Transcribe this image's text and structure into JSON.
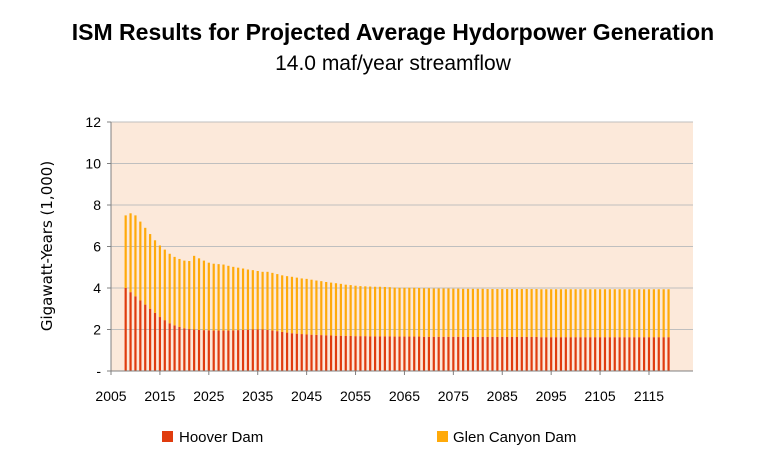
{
  "chart_data": {
    "type": "bar",
    "stacked": true,
    "title": "ISM Results for Projected Average Hydorpower Generation",
    "subtitle": "14.0 maf/year streamflow",
    "xlabel": "",
    "ylabel": "Gigawatt-Years (1,000)",
    "ylim": [
      0,
      12
    ],
    "y_ticks": [
      "-",
      "2",
      "4",
      "6",
      "8",
      "10",
      "12"
    ],
    "x_ticks": [
      "2005",
      "2015",
      "2025",
      "2035",
      "2045",
      "2055",
      "2065",
      "2075",
      "2085",
      "2095",
      "2105",
      "2115"
    ],
    "grid": true,
    "legend_position": "bottom",
    "colors": {
      "plot_background": "#FCE9DA",
      "grid": "#BFBFBF",
      "axis": "#808080"
    },
    "x": [
      2008,
      2009,
      2010,
      2011,
      2012,
      2013,
      2014,
      2015,
      2016,
      2017,
      2018,
      2019,
      2020,
      2021,
      2022,
      2023,
      2024,
      2025,
      2026,
      2027,
      2028,
      2029,
      2030,
      2031,
      2032,
      2033,
      2034,
      2035,
      2036,
      2037,
      2038,
      2039,
      2040,
      2041,
      2042,
      2043,
      2044,
      2045,
      2046,
      2047,
      2048,
      2049,
      2050,
      2051,
      2052,
      2053,
      2054,
      2055,
      2056,
      2057,
      2058,
      2059,
      2060,
      2061,
      2062,
      2063,
      2064,
      2065,
      2066,
      2067,
      2068,
      2069,
      2070,
      2071,
      2072,
      2073,
      2074,
      2075,
      2076,
      2077,
      2078,
      2079,
      2080,
      2081,
      2082,
      2083,
      2084,
      2085,
      2086,
      2087,
      2088,
      2089,
      2090,
      2091,
      2092,
      2093,
      2094,
      2095,
      2096,
      2097,
      2098,
      2099,
      2100,
      2101,
      2102,
      2103,
      2104,
      2105,
      2106,
      2107,
      2108,
      2109,
      2110,
      2111,
      2112,
      2113,
      2114,
      2115,
      2116,
      2117,
      2118,
      2119
    ],
    "series": [
      {
        "name": "Hoover Dam",
        "color": "#E03C0E",
        "values": [
          4.0,
          3.8,
          3.6,
          3.4,
          3.2,
          3.0,
          2.8,
          2.6,
          2.45,
          2.3,
          2.2,
          2.12,
          2.06,
          2.02,
          2.0,
          1.98,
          1.97,
          1.96,
          1.95,
          1.95,
          1.95,
          1.95,
          1.96,
          1.97,
          1.98,
          1.99,
          2.0,
          2.0,
          2.0,
          1.98,
          1.95,
          1.92,
          1.88,
          1.85,
          1.82,
          1.8,
          1.78,
          1.76,
          1.75,
          1.74,
          1.73,
          1.72,
          1.71,
          1.7,
          1.7,
          1.69,
          1.69,
          1.68,
          1.68,
          1.68,
          1.67,
          1.67,
          1.67,
          1.67,
          1.67,
          1.66,
          1.66,
          1.66,
          1.66,
          1.66,
          1.66,
          1.65,
          1.65,
          1.65,
          1.65,
          1.65,
          1.65,
          1.65,
          1.65,
          1.64,
          1.64,
          1.64,
          1.64,
          1.64,
          1.64,
          1.64,
          1.64,
          1.64,
          1.64,
          1.64,
          1.64,
          1.64,
          1.64,
          1.64,
          1.64,
          1.63,
          1.63,
          1.63,
          1.63,
          1.63,
          1.63,
          1.63,
          1.63,
          1.63,
          1.63,
          1.63,
          1.63,
          1.63,
          1.63,
          1.63,
          1.63,
          1.63,
          1.63,
          1.63,
          1.63,
          1.63,
          1.63,
          1.63,
          1.63,
          1.63,
          1.63,
          1.63
        ]
      },
      {
        "name": "Glen Canyon Dam",
        "color": "#FFAA0A",
        "values": [
          3.5,
          3.8,
          3.9,
          3.8,
          3.7,
          3.6,
          3.5,
          3.45,
          3.4,
          3.35,
          3.3,
          3.28,
          3.26,
          3.28,
          3.55,
          3.45,
          3.35,
          3.26,
          3.22,
          3.2,
          3.18,
          3.12,
          3.06,
          3.01,
          2.96,
          2.9,
          2.86,
          2.82,
          2.78,
          2.8,
          2.78,
          2.75,
          2.73,
          2.72,
          2.72,
          2.7,
          2.68,
          2.68,
          2.65,
          2.62,
          2.6,
          2.57,
          2.55,
          2.53,
          2.5,
          2.47,
          2.45,
          2.43,
          2.41,
          2.4,
          2.4,
          2.39,
          2.39,
          2.38,
          2.37,
          2.36,
          2.35,
          2.35,
          2.35,
          2.35,
          2.34,
          2.34,
          2.34,
          2.33,
          2.33,
          2.33,
          2.33,
          2.32,
          2.32,
          2.32,
          2.32,
          2.32,
          2.32,
          2.32,
          2.31,
          2.31,
          2.31,
          2.31,
          2.31,
          2.31,
          2.31,
          2.31,
          2.31,
          2.31,
          2.31,
          2.31,
          2.31,
          2.31,
          2.31,
          2.31,
          2.31,
          2.31,
          2.31,
          2.31,
          2.31,
          2.31,
          2.31,
          2.31,
          2.31,
          2.31,
          2.31,
          2.31,
          2.31,
          2.31,
          2.31,
          2.31,
          2.31,
          2.31,
          2.31,
          2.31,
          2.31,
          2.31
        ]
      }
    ]
  }
}
